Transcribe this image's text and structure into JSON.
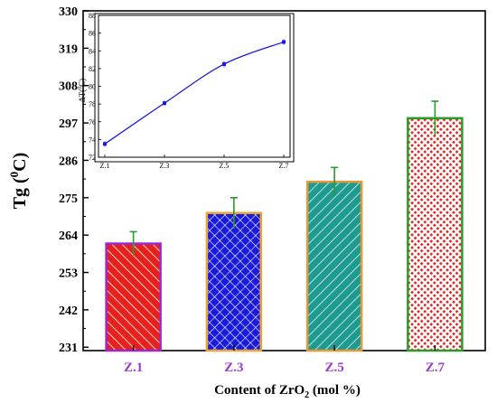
{
  "chart_data": [
    {
      "type": "bar",
      "categories": [
        "Z.1",
        "Z.3",
        "Z.5",
        "Z.7"
      ],
      "values": [
        261.5,
        270.5,
        279.7,
        298.4
      ],
      "errors": [
        3.5,
        4.5,
        4.2,
        5.0
      ],
      "ylim": [
        230,
        330
      ],
      "yticks": [
        "231",
        "242",
        "253",
        "264",
        "275",
        "286",
        "297",
        "308",
        "319",
        "330"
      ],
      "xlabel": {
        "pre": "Content of  ZrO",
        "sub": "2",
        "post": " (mol %)"
      },
      "ylabel": {
        "pre": "Tg (",
        "sup": "0",
        "post": "C)"
      },
      "bars": [
        {
          "fill": "#e8201c",
          "stroke": "#9b25d8",
          "pattern": "diag-right"
        },
        {
          "fill": "#1a1adc",
          "stroke": "#e9a43a",
          "pattern": "crosshatch"
        },
        {
          "fill": "#1e9a90",
          "stroke": "#e59a36",
          "pattern": "diag-left"
        },
        {
          "fill": "#f8d0d0",
          "stroke": "#2a9a2a",
          "pattern": "dots-red"
        }
      ],
      "error_color": "#2a9a2a",
      "category_color": "#9b3bd3"
    },
    {
      "type": "line",
      "categories": [
        "Z.1",
        "Z.3",
        "Z.5",
        "Z.7"
      ],
      "values": [
        73.5,
        78.1,
        82.5,
        85.0
      ],
      "errors": [
        0.3,
        0.3,
        0.35,
        0.3
      ],
      "ylim": [
        72,
        88
      ],
      "yticks": [
        "72",
        "74",
        "76",
        "78",
        "80",
        "82",
        "84",
        "86",
        "88"
      ],
      "ylabel": {
        "pre": "ΔT(",
        "sup": "0",
        "post": "C)"
      },
      "color": "#1a1adc"
    }
  ]
}
